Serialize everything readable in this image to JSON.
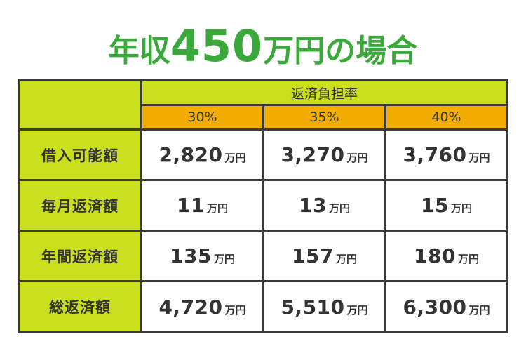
{
  "title": {
    "prefix": "年収",
    "amount": "450",
    "suffix": "万円の場合"
  },
  "table": {
    "group_header": "返済負担率",
    "columns": [
      "30%",
      "35%",
      "40%"
    ],
    "unit": "万円",
    "rows": [
      {
        "label": "借入可能額",
        "values": [
          "2,820",
          "3,270",
          "3,760"
        ]
      },
      {
        "label": "毎月返済額",
        "values": [
          "11",
          "13",
          "15"
        ]
      },
      {
        "label": "年間返済額",
        "values": [
          "135",
          "157",
          "180"
        ]
      },
      {
        "label": "総返済額",
        "values": [
          "4,720",
          "5,510",
          "6,300"
        ]
      }
    ]
  },
  "colors": {
    "title": "#3aa83a",
    "lime": "#cadf1e",
    "orange": "#f2ad00",
    "border": "#3a3a3a"
  }
}
